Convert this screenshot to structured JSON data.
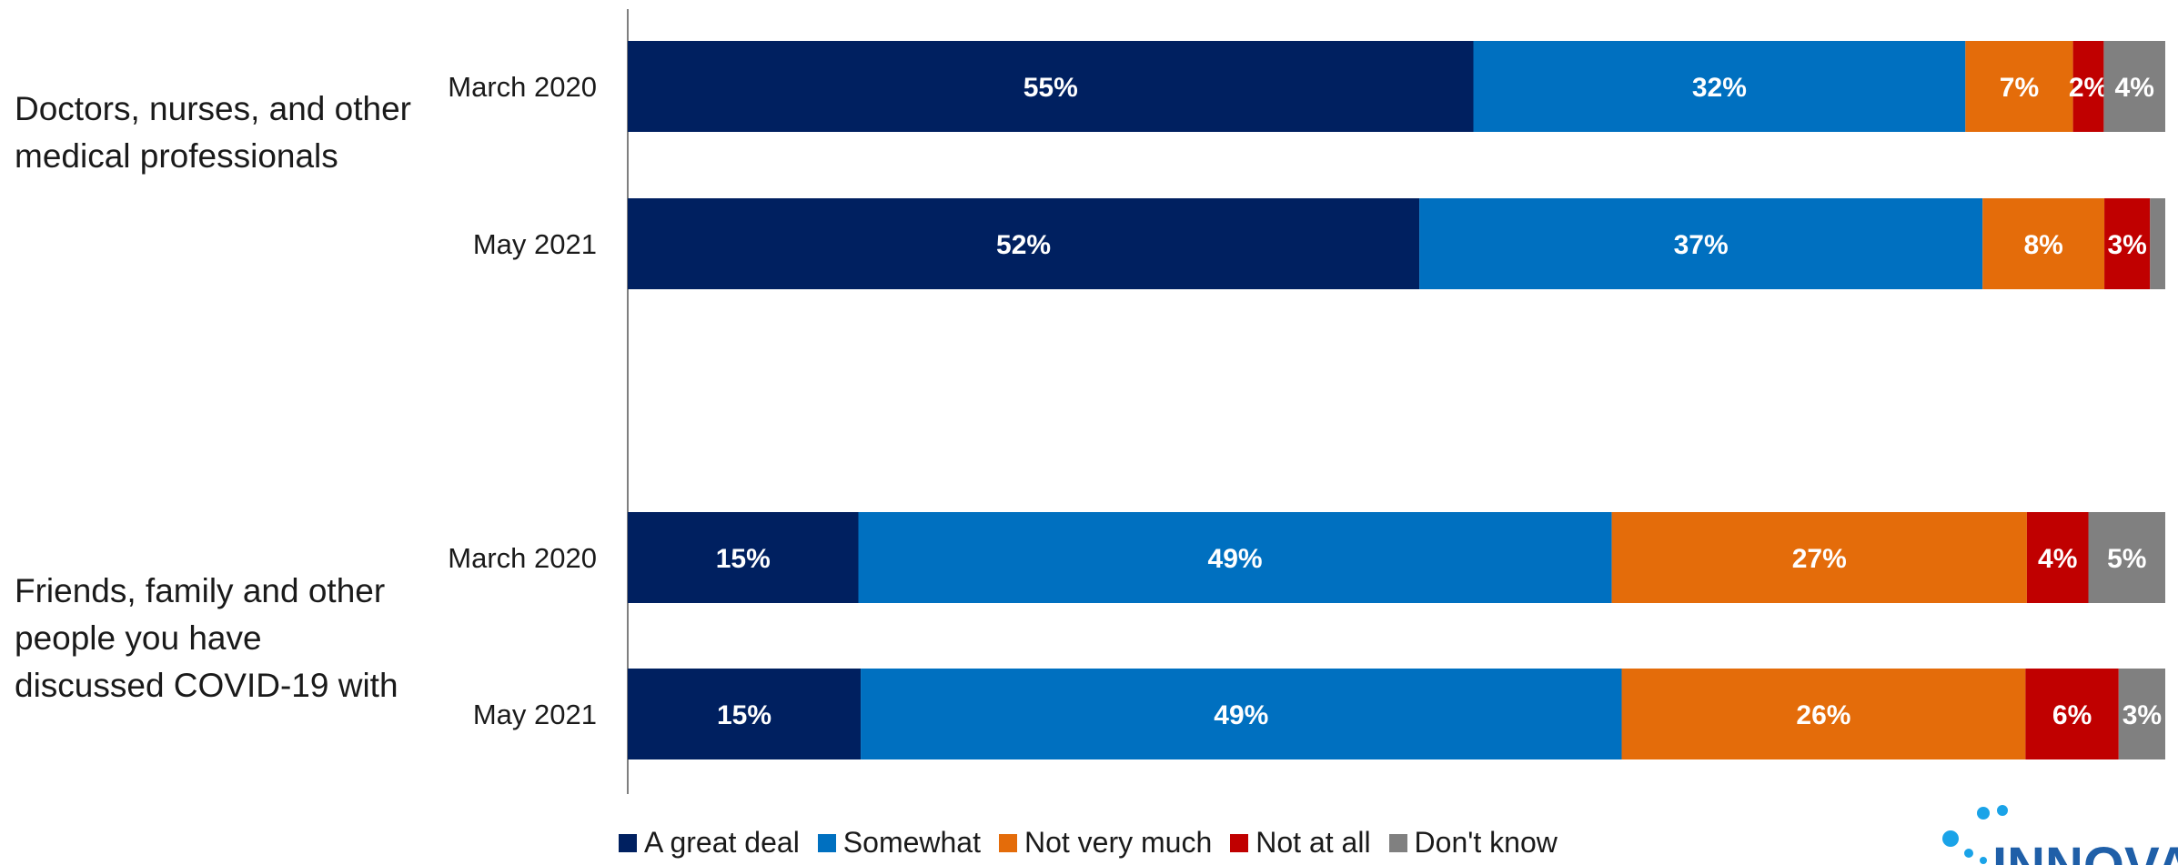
{
  "chart_data": {
    "type": "bar",
    "orientation": "horizontal",
    "stacked": "percent",
    "groups": [
      {
        "label": "Doctors, nurses, and other medical professionals",
        "rows": [
          "March 2020",
          "May 2021"
        ]
      },
      {
        "label": "Friends, family and other people you have discussed COVID-19 with",
        "rows": [
          "March 2020",
          "May 2021"
        ]
      }
    ],
    "categories": [
      "March 2020",
      "May 2021",
      "March 2020",
      "May 2021"
    ],
    "series": [
      {
        "name": "A great deal",
        "color": "#002060",
        "values": [
          55,
          52,
          15,
          15
        ],
        "labels": [
          "55%",
          "52%",
          "15%",
          "15%"
        ]
      },
      {
        "name": "Somewhat",
        "color": "#0070C0",
        "values": [
          32,
          37,
          49,
          49
        ],
        "labels": [
          "32%",
          "37%",
          "49%",
          "49%"
        ]
      },
      {
        "name": "Not very much",
        "color": "#E46C0A",
        "values": [
          7,
          8,
          27,
          26
        ],
        "labels": [
          "7%",
          "8%",
          "27%",
          "26%"
        ]
      },
      {
        "name": "Not at all",
        "color": "#C00000",
        "values": [
          2,
          3,
          4,
          6
        ],
        "labels": [
          "2%",
          "3%",
          "4%",
          "6%"
        ]
      },
      {
        "name": "Don't know",
        "color": "#808080",
        "values": [
          4,
          1,
          5,
          3
        ],
        "labels": [
          "4%",
          "",
          "5%",
          "3%"
        ]
      }
    ],
    "legend_position": "bottom",
    "grid": false
  },
  "brand": {
    "logo_text": "INNOVAT",
    "accent": "#1aa3e8"
  }
}
